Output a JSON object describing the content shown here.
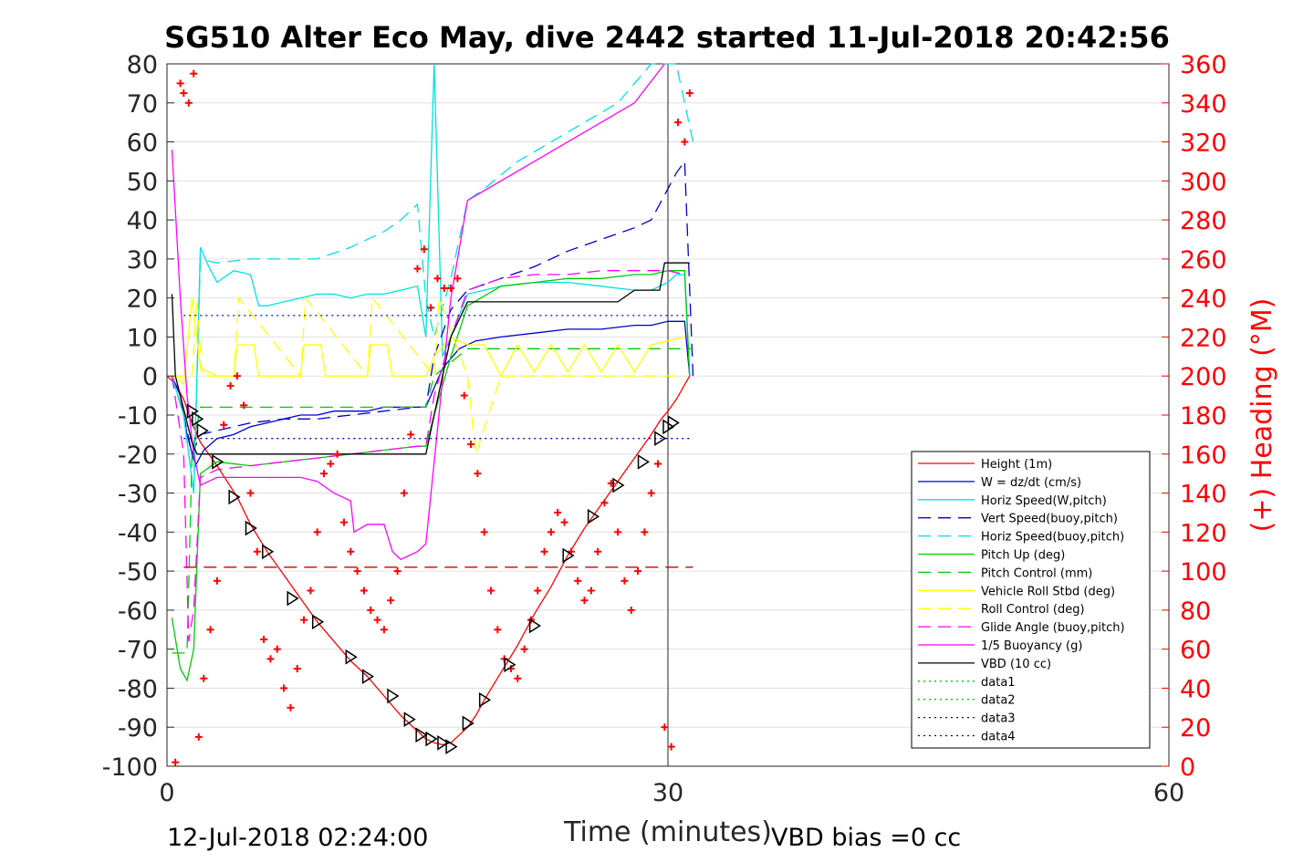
{
  "title": "SG510 Alter Eco May, dive 2442 started 11-Jul-2018 20:42:56",
  "footer": {
    "end_time": "12-Jul-2018 02:24:00",
    "vbd_bias": "VBD bias =0 cc"
  },
  "chart_data": {
    "type": "line",
    "xlabel": "Time (minutes)",
    "ylabel_left": "",
    "ylabel_right": "(+) Heading (°M)",
    "xlim": [
      0,
      60
    ],
    "ylim": [
      -100,
      80
    ],
    "y2lim": [
      0,
      360
    ],
    "x_ticks": [
      "0",
      "30",
      "60"
    ],
    "y_ticks": [
      "80",
      "70",
      "60",
      "50",
      "40",
      "30",
      "20",
      "10",
      "0",
      "-10",
      "-20",
      "-30",
      "-40",
      "-50",
      "-60",
      "-70",
      "-80",
      "-90",
      "-100"
    ],
    "y2_ticks": [
      "360",
      "340",
      "320",
      "300",
      "280",
      "260",
      "240",
      "220",
      "200",
      "180",
      "160",
      "140",
      "120",
      "100",
      "80",
      "60",
      "40",
      "20",
      "0"
    ],
    "grid": "horizontal major lines",
    "legend_position": "lower-right",
    "legend": [
      {
        "label": "Height (1m)",
        "color": "#ff0000",
        "style": "solid"
      },
      {
        "label": "W = dz/dt (cm/s)",
        "color": "#0000cc",
        "style": "solid"
      },
      {
        "label": "Horiz Speed(W,pitch)",
        "color": "#00e0e0",
        "style": "solid"
      },
      {
        "label": "Vert Speed(buoy,pitch)",
        "color": "#0000cc",
        "style": "dashed"
      },
      {
        "label": "Horiz Speed(buoy,pitch)",
        "color": "#00e0e0",
        "style": "dashed"
      },
      {
        "label": "Pitch Up (deg)",
        "color": "#00cc00",
        "style": "solid"
      },
      {
        "label": "Pitch Control (mm)",
        "color": "#00cc00",
        "style": "dashed"
      },
      {
        "label": "Vehicle Roll Stbd (deg)",
        "color": "#ffff00",
        "style": "solid"
      },
      {
        "label": "Roll Control (deg)",
        "color": "#ffff00",
        "style": "dashed"
      },
      {
        "label": "Glide Angle (buoy,pitch)",
        "color": "#ff00ff",
        "style": "dashed"
      },
      {
        "label": "1/5 Buoyancy (g)",
        "color": "#ff00ff",
        "style": "solid"
      },
      {
        "label": "VBD (10 cc)",
        "color": "#000000",
        "style": "solid"
      },
      {
        "label": "data1",
        "color": "#00cc00",
        "style": "dotted"
      },
      {
        "label": "data2",
        "color": "#00cc00",
        "style": "dotted"
      },
      {
        "label": "data3",
        "color": "#0000cc",
        "style": "dotted"
      },
      {
        "label": "data4",
        "color": "#0000cc",
        "style": "dotted"
      }
    ],
    "series": [
      {
        "name": "Height (1m)",
        "color": "#ff0000",
        "style": "solid",
        "x": [
          0,
          0.5,
          1,
          1.5,
          2,
          3,
          4.2,
          5,
          6,
          7,
          8,
          9,
          10,
          11,
          12,
          13,
          14,
          15,
          15.5,
          16,
          16.5,
          17,
          17.5,
          18,
          18.5,
          19,
          20,
          21,
          22,
          23,
          24,
          25,
          26,
          27,
          28,
          29,
          29.6,
          30,
          30.5,
          31.3
        ],
        "y": [
          0,
          -2,
          -6,
          -12,
          -17,
          -23,
          -31,
          -38,
          -45,
          -51,
          -57,
          -63,
          -68,
          -73,
          -77,
          -82,
          -87,
          -91,
          -93,
          -94,
          -94.5,
          -94,
          -92,
          -90,
          -87,
          -83,
          -76,
          -69,
          -61,
          -54,
          -46,
          -39,
          -33,
          -27,
          -21,
          -15,
          -11,
          -9,
          -6,
          0
        ]
      },
      {
        "name": "W = dz/dt (cm/s)",
        "color": "#0000cc",
        "style": "solid",
        "x": [
          0.3,
          0.8,
          1.2,
          1.7,
          2.2,
          3,
          4,
          5,
          6,
          7,
          8,
          9,
          10,
          11,
          12,
          13,
          14,
          15,
          15.5,
          16,
          16.5,
          17.5,
          18.5,
          20,
          22,
          24,
          26,
          28,
          29,
          30,
          30.5,
          31,
          31.3
        ],
        "y": [
          0,
          -5,
          -15,
          -23,
          -19,
          -16,
          -15,
          -13,
          -12,
          -11,
          -10,
          -10,
          -9,
          -9,
          -9,
          -8,
          -8,
          -8,
          -8,
          -3,
          2,
          7,
          9,
          10,
          11,
          12,
          12,
          13,
          13,
          14,
          14,
          14,
          0
        ]
      },
      {
        "name": "Horiz Speed(W,pitch)",
        "color": "#00e0e0",
        "style": "solid",
        "x": [
          0.3,
          1,
          1.6,
          2,
          2.5,
          3,
          4,
          5,
          5.5,
          6,
          7,
          8,
          9,
          10,
          11,
          12,
          13,
          14,
          15,
          15.5,
          16,
          16.5,
          17,
          18,
          19,
          20,
          22,
          24,
          26,
          28,
          29,
          30,
          30.5,
          31,
          31.3
        ],
        "y": [
          0,
          -10,
          -30,
          33,
          28,
          24,
          27,
          26,
          18,
          18,
          19,
          20,
          21,
          21,
          20,
          21,
          21,
          22,
          23,
          10,
          80,
          5,
          10,
          21,
          22,
          23,
          24,
          24,
          23,
          22,
          22,
          24,
          26,
          26,
          0
        ]
      },
      {
        "name": "Vert Speed(buoy,pitch)",
        "color": "#0000cc",
        "style": "dashed",
        "x": [
          0.3,
          1,
          1.5,
          2,
          3,
          5,
          7,
          9,
          11,
          13,
          15,
          15.5,
          16,
          17,
          18,
          20,
          22,
          24,
          26,
          28,
          29,
          30,
          30.5,
          31,
          31.5
        ],
        "y": [
          0,
          -10,
          -20,
          -15,
          -14,
          -12,
          -11,
          -11,
          -10,
          -9,
          -8,
          -8,
          5,
          17,
          22,
          25,
          28,
          32,
          35,
          38,
          40,
          48,
          52,
          55,
          0
        ]
      },
      {
        "name": "Horiz Speed(buoy,pitch)",
        "color": "#00e0e0",
        "style": "dashed",
        "x": [
          0.3,
          1,
          1.6,
          2,
          3,
          5,
          7,
          9,
          11,
          13,
          14,
          15,
          15.5,
          16,
          17,
          18,
          19,
          21,
          23,
          25,
          27,
          29,
          30,
          30.5,
          31,
          31.5
        ],
        "y": [
          0,
          -10,
          -30,
          30,
          29,
          30,
          30,
          30,
          33,
          37,
          40,
          44,
          20,
          10,
          25,
          45,
          48,
          55,
          60,
          65,
          70,
          80,
          85,
          80,
          70,
          60
        ]
      },
      {
        "name": "Pitch Up (deg)",
        "color": "#00cc00",
        "style": "solid",
        "x": [
          0.3,
          0.8,
          1.2,
          1.6,
          2,
          3,
          5,
          7,
          9,
          11,
          13,
          15,
          15.5,
          16,
          17,
          18,
          20,
          22,
          24,
          26,
          28,
          29,
          30,
          30.5,
          31,
          31.3
        ],
        "y": [
          -62,
          -75,
          -78,
          -70,
          -25,
          -22,
          -23,
          -22,
          -21,
          -20,
          -19,
          -18,
          -18,
          -10,
          5,
          18,
          23,
          24,
          25,
          25,
          26,
          26,
          27,
          27,
          27,
          0
        ]
      },
      {
        "name": "Pitch Control (mm)",
        "color": "#00cc00",
        "style": "dashed",
        "x": [
          0.3,
          1,
          1.2,
          1.5,
          2,
          15.5,
          16,
          18,
          29.5,
          31.5
        ],
        "y": [
          -71,
          -71,
          -71,
          -20,
          -8,
          -8,
          0,
          7,
          7,
          7
        ]
      },
      {
        "name": "Vehicle Roll Stbd (deg)",
        "color": "#ffff00",
        "style": "solid",
        "x": [
          0.3,
          1,
          1.5,
          2,
          3,
          4,
          4.2,
          5.2,
          5.5,
          6,
          8,
          8.2,
          9.2,
          9.5,
          10,
          12,
          12.2,
          13.2,
          13.5,
          14,
          15.5,
          16,
          17,
          18,
          19,
          20,
          21,
          22,
          23,
          24,
          25,
          26,
          27,
          28,
          29,
          30,
          31
        ],
        "y": [
          0,
          -2,
          20,
          2,
          0,
          0,
          8,
          8,
          0,
          0,
          0,
          8,
          8,
          0,
          0,
          0,
          8,
          8,
          0,
          0,
          0,
          5,
          10,
          8,
          8,
          0,
          8,
          1,
          8,
          1,
          8,
          1,
          8,
          1,
          8,
          9,
          10
        ]
      },
      {
        "name": "Roll Control (deg)",
        "color": "#ffff00",
        "style": "dashed",
        "x": [
          0.3,
          1.5,
          1.8,
          2.1,
          4,
          4.3,
          8,
          8.3,
          12,
          12.3,
          16,
          16.3,
          18,
          18.5,
          20,
          31
        ],
        "y": [
          0,
          0,
          20,
          0,
          0,
          20,
          0,
          20,
          0,
          20,
          0,
          20,
          0,
          -20,
          0,
          0
        ]
      },
      {
        "name": "Glide Angle (buoy,pitch)",
        "color": "#ff00ff",
        "style": "dashed",
        "x": [
          0.3,
          1,
          1.3,
          1.6,
          2,
          3,
          5,
          7,
          9,
          11,
          13,
          15,
          15.5,
          16,
          17,
          18,
          20,
          22,
          24,
          26,
          28,
          29,
          30,
          31
        ],
        "y": [
          0,
          -20,
          -68,
          -60,
          -26,
          -24,
          -23,
          -22,
          -21,
          -20,
          -19,
          -18,
          -18,
          -5,
          10,
          22,
          25,
          26,
          26,
          27,
          27,
          27,
          27,
          26
        ]
      },
      {
        "name": "1/5 Buoyancy (g)",
        "color": "#ff00ff",
        "style": "solid",
        "x": [
          0.3,
          0.8,
          1.2,
          1.6,
          2,
          3,
          5,
          7,
          8,
          9,
          10,
          11,
          11.2,
          12,
          13,
          13.5,
          14,
          15,
          15.5,
          17,
          18,
          20,
          22,
          24,
          26,
          28,
          29.8
        ],
        "y": [
          58,
          20,
          -5,
          -20,
          -28,
          -26,
          -26,
          -26,
          -26,
          -27,
          -30,
          -32,
          -40,
          -38,
          -38,
          -45,
          -47,
          -45,
          -43,
          20,
          45,
          50,
          55,
          60,
          65,
          70,
          80
        ]
      },
      {
        "name": "VBD (10 cc)",
        "color": "#000000",
        "style": "solid",
        "x": [
          0.3,
          0.5,
          1.5,
          1.8,
          2,
          15.5,
          16,
          17,
          18,
          20,
          26,
          27,
          28,
          29.5,
          29.8,
          31,
          31.3
        ],
        "y": [
          21,
          0,
          -17,
          -20,
          -20,
          -20,
          -10,
          10,
          19,
          19,
          19,
          19,
          22,
          22,
          29,
          29,
          29
        ]
      },
      {
        "name": "data3",
        "color": "#0000cc",
        "style": "dotted",
        "x": [
          1,
          31.5
        ],
        "y": [
          15.5,
          15.5
        ]
      },
      {
        "name": "data4",
        "color": "#0000cc",
        "style": "dotted",
        "x": [
          1,
          31.5
        ],
        "y": [
          -16,
          -16
        ]
      },
      {
        "name": "heading-ref",
        "color": "#cc0000",
        "style": "dashed",
        "x": [
          1,
          31.5
        ],
        "y": [
          -49,
          -49
        ]
      }
    ],
    "heading_points": {
      "axis": "right",
      "x": [
        0.5,
        0.8,
        1,
        1.3,
        1.6,
        1.9,
        2.2,
        2.6,
        3,
        3.4,
        3.8,
        4.2,
        4.6,
        5,
        5.4,
        5.8,
        6.2,
        6.6,
        7,
        7.4,
        7.8,
        8.2,
        8.6,
        9,
        9.4,
        9.8,
        10.2,
        10.6,
        11,
        11.4,
        11.8,
        12.2,
        12.6,
        13,
        13.4,
        13.8,
        14.2,
        14.6,
        15,
        15.4,
        15.8,
        16.2,
        16.6,
        17,
        17.4,
        17.8,
        18.2,
        18.6,
        19,
        19.4,
        19.8,
        20.2,
        20.6,
        21,
        21.4,
        21.8,
        22.2,
        22.6,
        23,
        23.4,
        23.8,
        24.2,
        24.6,
        25,
        25.4,
        25.8,
        26.2,
        26.6,
        27,
        27.4,
        27.8,
        28.2,
        28.6,
        29,
        29.4,
        29.8,
        30.2,
        30.6,
        31,
        31.3
      ],
      "y": [
        2,
        350,
        345,
        340,
        355,
        15,
        45,
        70,
        95,
        175,
        195,
        200,
        185,
        140,
        110,
        65,
        55,
        60,
        40,
        30,
        50,
        75,
        90,
        120,
        150,
        155,
        160,
        125,
        110,
        100,
        90,
        80,
        75,
        70,
        85,
        100,
        140,
        170,
        255,
        265,
        235,
        250,
        245,
        245,
        250,
        190,
        165,
        150,
        120,
        90,
        70,
        55,
        50,
        45,
        60,
        75,
        90,
        110,
        120,
        130,
        125,
        110,
        95,
        85,
        90,
        110,
        135,
        145,
        120,
        95,
        80,
        100,
        120,
        140,
        155,
        20,
        10,
        330,
        320,
        345
      ]
    },
    "triangle_markers": {
      "x": [
        1.5,
        1.8,
        2.1,
        3,
        4,
        5,
        6,
        7.5,
        9,
        11,
        12,
        13.5,
        14.5,
        15.2,
        15.8,
        16.5,
        17,
        18,
        19,
        20.5,
        22,
        24,
        25.5,
        27,
        28.5,
        29.5,
        30,
        30.3
      ],
      "y": [
        -9,
        -11,
        -14,
        -22,
        -31,
        -39,
        -45,
        -57,
        -63,
        -72,
        -77,
        -82,
        -88,
        -92,
        -93,
        -94,
        -95,
        -89,
        -83,
        -74,
        -64,
        -46,
        -36,
        -28,
        -22,
        -16,
        -13,
        -12
      ]
    }
  }
}
